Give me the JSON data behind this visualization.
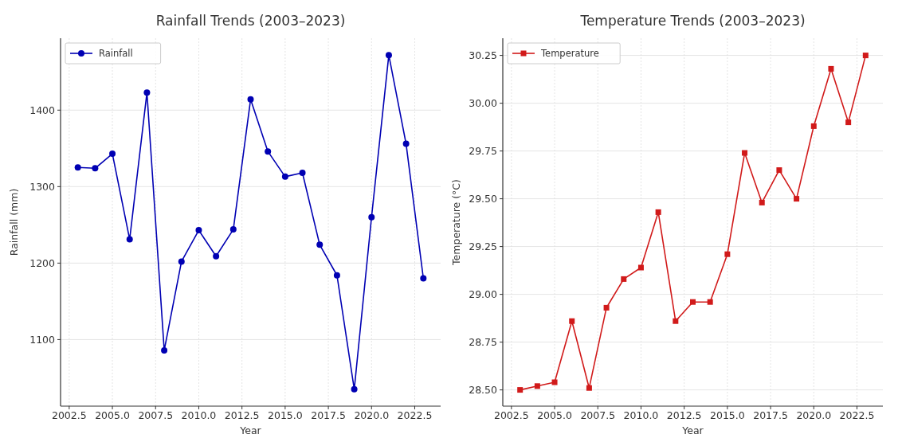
{
  "chart_data": [
    {
      "type": "line",
      "title": "Rainfall Trends (2003–2023)",
      "xlabel": "Year",
      "ylabel": "Rainfall (mm)",
      "x": [
        2003,
        2004,
        2005,
        2006,
        2007,
        2008,
        2009,
        2010,
        2011,
        2012,
        2013,
        2014,
        2015,
        2016,
        2017,
        2018,
        2019,
        2020,
        2021,
        2022,
        2023
      ],
      "series": [
        {
          "name": "Rainfall",
          "color": "#0000b3",
          "marker": "circle",
          "values": [
            1325,
            1324,
            1343,
            1231,
            1423,
            1086,
            1202,
            1243,
            1209,
            1244,
            1414,
            1346,
            1313,
            1318,
            1224,
            1184,
            1035,
            1260,
            1472,
            1356,
            1180
          ]
        }
      ],
      "xlim": [
        2002,
        2024
      ],
      "xticks": [
        {
          "value": 2002.5,
          "label": "2002.5"
        },
        {
          "value": 2005,
          "label": "2005.0"
        },
        {
          "value": 2007.5,
          "label": "2007.5"
        },
        {
          "value": 2010,
          "label": "2010.0"
        },
        {
          "value": 2012.5,
          "label": "2012.5"
        },
        {
          "value": 2015,
          "label": "2015.0"
        },
        {
          "value": 2017.5,
          "label": "2017.5"
        },
        {
          "value": 2020,
          "label": "2020.0"
        },
        {
          "value": 2022.5,
          "label": "2022.5"
        }
      ],
      "ylim": [
        1013,
        1494
      ],
      "yticks": [
        1100,
        1200,
        1300,
        1400
      ],
      "grid": true,
      "legend": "top left"
    },
    {
      "type": "line",
      "title": "Temperature Trends (2003–2023)",
      "xlabel": "Year",
      "ylabel": "Temperature (°C)",
      "x": [
        2003,
        2004,
        2005,
        2006,
        2007,
        2008,
        2009,
        2010,
        2011,
        2012,
        2013,
        2014,
        2015,
        2016,
        2017,
        2018,
        2019,
        2020,
        2021,
        2022,
        2023
      ],
      "series": [
        {
          "name": "Temperature",
          "color": "#d11a1a",
          "marker": "square",
          "values": [
            28.5,
            28.52,
            28.54,
            28.86,
            28.51,
            28.93,
            29.08,
            29.14,
            29.43,
            28.86,
            28.96,
            28.96,
            29.21,
            29.74,
            29.48,
            29.65,
            29.5,
            29.88,
            30.18,
            29.9,
            30.25
          ]
        }
      ],
      "xlim": [
        2002,
        2024
      ],
      "xticks": [
        {
          "value": 2002.5,
          "label": "2002.5"
        },
        {
          "value": 2005,
          "label": "2005.0"
        },
        {
          "value": 2007.5,
          "label": "2007.5"
        },
        {
          "value": 2010,
          "label": "2010.0"
        },
        {
          "value": 2012.5,
          "label": "2012.5"
        },
        {
          "value": 2015,
          "label": "2015.0"
        },
        {
          "value": 2017.5,
          "label": "2017.5"
        },
        {
          "value": 2020,
          "label": "2020.0"
        },
        {
          "value": 2022.5,
          "label": "2022.5"
        }
      ],
      "ylim": [
        28.415,
        30.34
      ],
      "yticks": [
        {
          "value": 28.5,
          "label": "28.50"
        },
        {
          "value": 28.75,
          "label": "28.75"
        },
        {
          "value": 29,
          "label": "29.00"
        },
        {
          "value": 29.25,
          "label": "29.25"
        },
        {
          "value": 29.5,
          "label": "29.50"
        },
        {
          "value": 29.75,
          "label": "29.75"
        },
        {
          "value": 30,
          "label": "30.00"
        },
        {
          "value": 30.25,
          "label": "30.25"
        }
      ],
      "grid": true,
      "legend": "top left"
    }
  ]
}
